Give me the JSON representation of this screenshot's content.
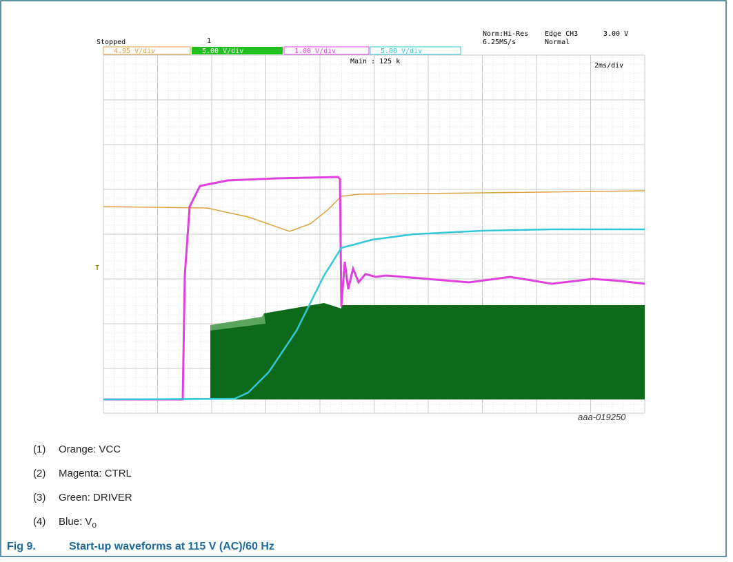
{
  "scope": {
    "status": "Stopped",
    "trigger_marker": "1",
    "mode": "Norm:Hi-Res",
    "sample_rate": "6.25MS/s",
    "trigger": "Edge CH3",
    "trigger_level": "3.00 V",
    "trigger_mode": "Normal",
    "channels": [
      "4.95 V/div",
      "5.00 V/div",
      "1.00 V/div",
      "5.00 V/div"
    ],
    "main": "Main : 125 k",
    "timebase": "2ms/div",
    "figure_id": "aaa-019250"
  },
  "legend": [
    {
      "number": "(1)",
      "text": "Orange: VCC"
    },
    {
      "number": "(2)",
      "text": "Magenta: CTRL"
    },
    {
      "number": "(3)",
      "text": "Green: DRIVER"
    },
    {
      "number": "(4)",
      "text": "Blue: V",
      "subscript": "o"
    }
  ],
  "caption": {
    "label": "Fig 9.",
    "text": "Start-up waveforms at 115 V (AC)/60 Hz"
  }
}
